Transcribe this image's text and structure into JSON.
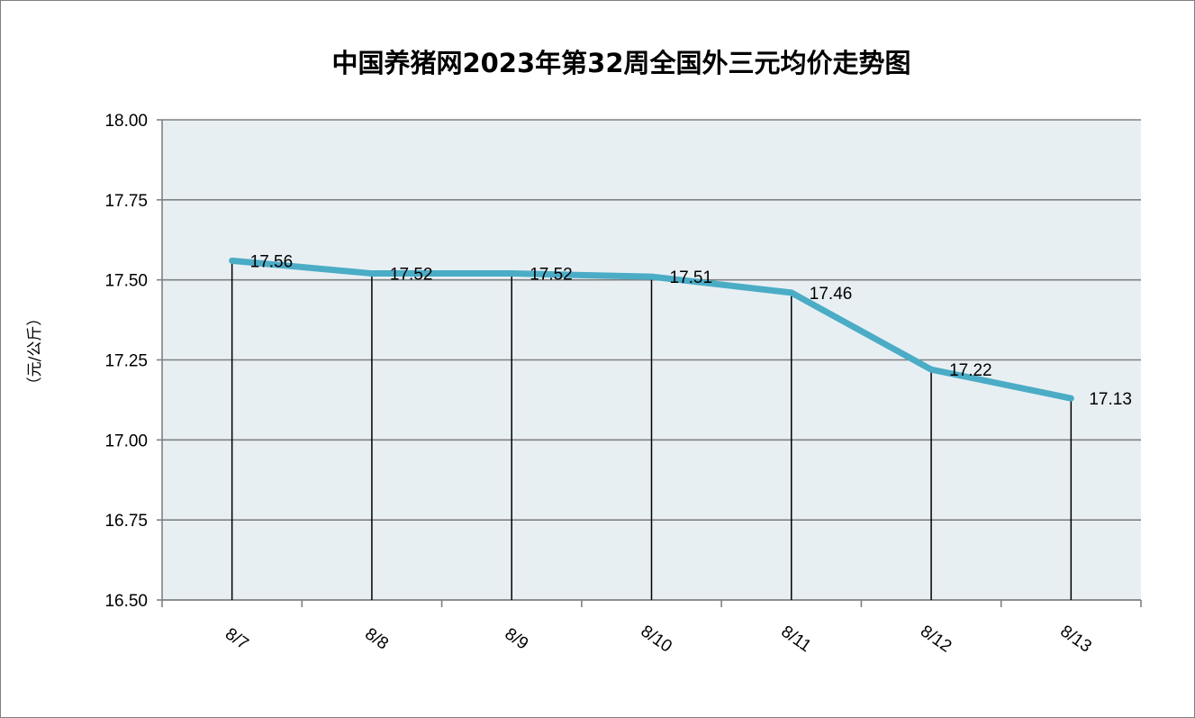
{
  "chart_data": {
    "type": "line",
    "title": "中国养猪网2023年第32周全国外三元均价走势图",
    "ylabel": "（元/公斤）",
    "xlabel": "",
    "categories": [
      "8/7",
      "8/8",
      "8/9",
      "8/10",
      "8/11",
      "8/12",
      "8/13"
    ],
    "series": [
      {
        "values": [
          17.56,
          17.52,
          17.52,
          17.51,
          17.46,
          17.22,
          17.13
        ]
      }
    ],
    "data_labels": [
      "17.56",
      "17.52",
      "17.52",
      "17.51",
      "17.46",
      "17.22",
      "17.13"
    ],
    "ylim": [
      16.5,
      18.0
    ],
    "yticks": [
      "16.50",
      "16.75",
      "17.00",
      "17.25",
      "17.50",
      "17.75",
      "18.00"
    ],
    "grid": true,
    "drop_lines": true,
    "legend": "none",
    "colors": {
      "line": "#4bacc6",
      "plot_background": "#e8eff3",
      "grid": "#808080",
      "drop_line": "#000000"
    }
  }
}
